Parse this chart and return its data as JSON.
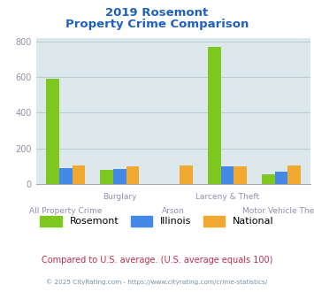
{
  "title_line1": "2019 Rosemont",
  "title_line2": "Property Crime Comparison",
  "title_color": "#2060c0",
  "fig_bg_color": "#ffffff",
  "plot_bg_color": "#dde8ed",
  "groups": [
    "All Property Crime",
    "Burglary",
    "Arson",
    "Larceny & Theft",
    "Motor Vehicle Theft"
  ],
  "labels_row1": [
    "",
    "Burglary",
    "",
    "Larceny & Theft",
    ""
  ],
  "labels_row2": [
    "All Property Crime",
    "",
    "Arson",
    "",
    "Motor Vehicle Theft"
  ],
  "rosemont": [
    590,
    80,
    0,
    770,
    55
  ],
  "illinois": [
    90,
    82,
    0,
    97,
    68
  ],
  "national": [
    105,
    100,
    103,
    100,
    105
  ],
  "colors": {
    "rosemont": "#7ec820",
    "illinois": "#4488e8",
    "national": "#f0a830"
  },
  "ylim": [
    0,
    820
  ],
  "yticks": [
    0,
    200,
    400,
    600,
    800
  ],
  "tick_label_color": "#9090a8",
  "grid_color": "#b8cdd4",
  "legend_labels": [
    "Rosemont",
    "Illinois",
    "National"
  ],
  "footnote": "Compared to U.S. average. (U.S. average equals 100)",
  "footnote2": "© 2025 CityRating.com - https://www.cityrating.com/crime-statistics/",
  "footnote_color": "#c03050",
  "footnote2_color": "#7090a8"
}
